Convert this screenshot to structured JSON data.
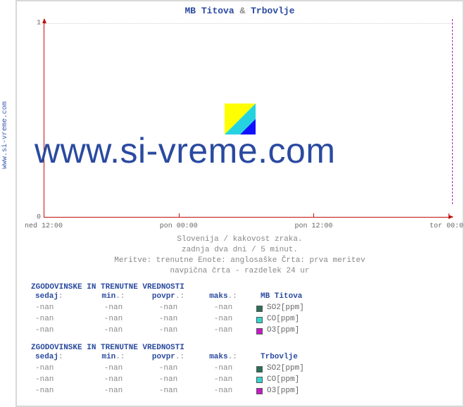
{
  "sidebar_url": "www.si-vreme.com",
  "chart": {
    "title_a": "MB Titova",
    "title_amp": "&",
    "title_b": "Trbovlje",
    "ylim": [
      0,
      1
    ],
    "yticks": [
      0,
      1
    ],
    "xticks": [
      {
        "pos": 0.0,
        "label": "ned 12:00"
      },
      {
        "pos": 0.33,
        "label": "pon 00:00"
      },
      {
        "pos": 0.66,
        "label": "pon 12:00"
      },
      {
        "pos": 0.99,
        "label": "tor 00:00"
      }
    ],
    "grid_color": "#cfcfcf",
    "axis_color": "#c01010",
    "marker_color": "#b020b8",
    "watermark": "www.si-vreme.com",
    "logo_colors": {
      "yellow": "#ffff00",
      "cyan": "#25d3e0",
      "blue": "#1010ff"
    }
  },
  "caption": {
    "l1": "Slovenija / kakovost zraka.",
    "l2": "zadnja dva dni / 5 minut.",
    "l3": "Meritve: trenutne  Enote: anglosaške  Črta: prva meritev",
    "l4": "navpična črta - razdelek 24 ur"
  },
  "table_title": "ZGODOVINSKE IN TRENUTNE VREDNOSTI",
  "headers": {
    "sedaj": "sedaj",
    "min": "min",
    "povpr": "povpr",
    "maks": "maks"
  },
  "punct_colon": ":",
  "punct_dotcolon": ".:",
  "stations": [
    {
      "name": "MB Titova",
      "rows": [
        {
          "vals": [
            "-nan",
            "-nan",
            "-nan",
            "-nan"
          ],
          "color": "#2b6e5a",
          "label": "SO2[ppm]"
        },
        {
          "vals": [
            "-nan",
            "-nan",
            "-nan",
            "-nan"
          ],
          "color": "#34d3cf",
          "label": "CO[ppm]"
        },
        {
          "vals": [
            "-nan",
            "-nan",
            "-nan",
            "-nan"
          ],
          "color": "#c619c6",
          "label": "O3[ppm]"
        }
      ]
    },
    {
      "name": "Trbovlje",
      "rows": [
        {
          "vals": [
            "-nan",
            "-nan",
            "-nan",
            "-nan"
          ],
          "color": "#2b6e5a",
          "label": "SO2[ppm]"
        },
        {
          "vals": [
            "-nan",
            "-nan",
            "-nan",
            "-nan"
          ],
          "color": "#34d3cf",
          "label": "CO[ppm]"
        },
        {
          "vals": [
            "-nan",
            "-nan",
            "-nan",
            "-nan"
          ],
          "color": "#c619c6",
          "label": "O3[ppm]"
        }
      ]
    }
  ]
}
